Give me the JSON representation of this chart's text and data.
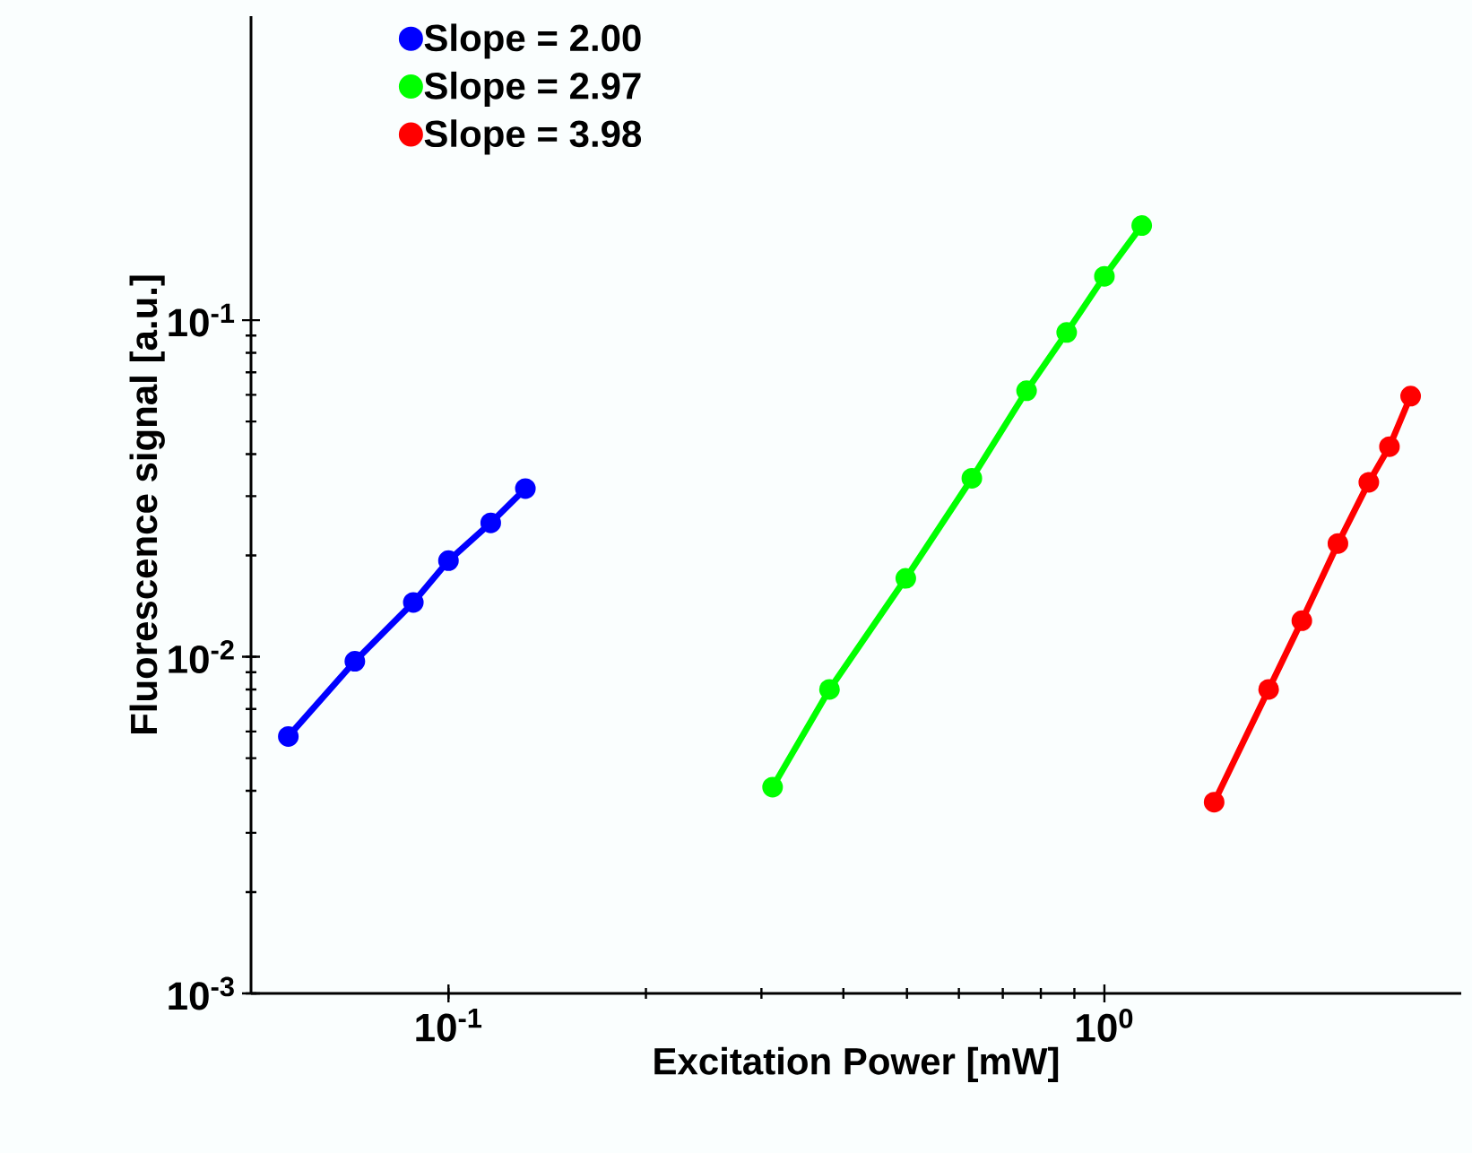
{
  "chart_data": {
    "type": "line",
    "xlabel": "Excitation Power [mW]",
    "ylabel": "Fluorescence signal [a.u.]",
    "log": "xy",
    "xlim": [
      0.05,
      3.5
    ],
    "ylim": [
      0.001,
      0.8
    ],
    "xticks": [
      {
        "value": 0.1,
        "label": "10$^{-1}$"
      },
      {
        "value": 1,
        "label": "10$^{0}$"
      }
    ],
    "yticks": [
      {
        "value": 0.001,
        "label": "10$^{-3}$"
      },
      {
        "value": 0.01,
        "label": "10$^{-2}$"
      },
      {
        "value": 0.1,
        "label": "10$^{-1}$"
      }
    ],
    "legend": "top left",
    "marker": "circle",
    "line_style": "solid",
    "grid": false,
    "series": [
      {
        "name": "Slope = 2.00",
        "color": "#0000ff",
        "x": [
          0.057,
          0.072,
          0.0884,
          0.1,
          0.116,
          0.131
        ],
        "values": [
          0.0058,
          0.0097,
          0.0145,
          0.0193,
          0.025,
          0.0316
        ]
      },
      {
        "name": "Slope = 2.97",
        "color": "#00ff00",
        "x": [
          0.312,
          0.381,
          0.498,
          0.628,
          0.761,
          0.876,
          1.0,
          1.14
        ],
        "values": [
          0.0041,
          0.008,
          0.0171,
          0.0339,
          0.0617,
          0.0919,
          0.135,
          0.191
        ]
      },
      {
        "name": "Slope = 3.98",
        "color": "#ff0000",
        "x": [
          1.47,
          1.78,
          2.0,
          2.27,
          2.53,
          2.72,
          2.93
        ],
        "values": [
          0.0037,
          0.008,
          0.0128,
          0.0217,
          0.033,
          0.0421,
          0.0595
        ]
      }
    ]
  }
}
